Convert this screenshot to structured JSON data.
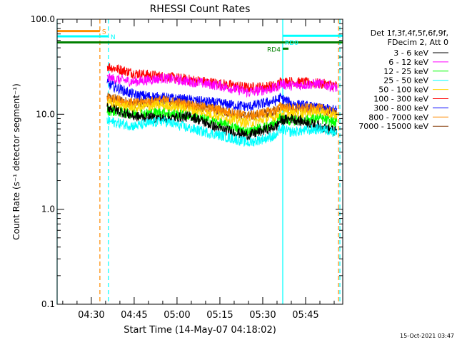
{
  "chart_data": {
    "type": "line",
    "title": "RHESSI Count Rates",
    "xlabel": "Start Time (14-May-07 04:18:02)",
    "ylabel": "Count Rate (s⁻¹ detector segment⁻¹)",
    "yscale": "log",
    "ylim": [
      0.1,
      100
    ],
    "xlim": [
      "04:18:02",
      "05:58:00"
    ],
    "x_tick_labels": [
      "04:30",
      "04:45",
      "05:00",
      "05:15",
      "05:30",
      "05:45"
    ],
    "y_tick_labels": [
      "0.1",
      "1.0",
      "10.0",
      "100.0"
    ],
    "grid": false,
    "legend_position": "right",
    "legend_header": [
      "Det 1f,3f,4f,5f,6f,9f,",
      "FDecim 2, Att 0"
    ],
    "timestamp": "15-Oct-2021 03:47",
    "data_start": "04:35:30",
    "data_end": "05:56:30",
    "series": [
      {
        "name": "3 - 6 keV",
        "color": "#000000",
        "x": [
          "04:35:30",
          "04:45",
          "04:55",
          "05:05",
          "05:15",
          "05:25",
          "05:35",
          "05:36",
          "05:40",
          "05:50",
          "05:56"
        ],
        "y": [
          12,
          9.5,
          9,
          9.5,
          7,
          6,
          7.5,
          8.5,
          9,
          7.5,
          6.5
        ]
      },
      {
        "name": "6 - 12 keV",
        "color": "#ff00ff",
        "x": [
          "04:35:30",
          "04:45",
          "04:55",
          "05:05",
          "05:15",
          "05:25",
          "05:35",
          "05:36",
          "05:40",
          "05:50",
          "05:56"
        ],
        "y": [
          24,
          22,
          24,
          22,
          20,
          17,
          19,
          21,
          20,
          21,
          19
        ]
      },
      {
        "name": "12 - 25 keV",
        "color": "#00ff00",
        "x": [
          "04:35:30",
          "04:45",
          "04:55",
          "05:05",
          "05:15",
          "05:25",
          "05:35",
          "05:36",
          "05:40",
          "05:50",
          "05:56"
        ],
        "y": [
          11,
          10,
          10.5,
          9.5,
          8,
          6.5,
          8,
          9,
          8.5,
          9,
          8
        ]
      },
      {
        "name": "25 - 50 keV",
        "color": "#00ffff",
        "x": [
          "04:35:30",
          "04:45",
          "04:55",
          "05:05",
          "05:15",
          "05:25",
          "05:35",
          "05:36",
          "05:40",
          "05:50",
          "05:56"
        ],
        "y": [
          8.5,
          7.5,
          8.5,
          7,
          6,
          5,
          6,
          7,
          6.5,
          7,
          6.5
        ]
      },
      {
        "name": "50 - 100 keV",
        "color": "#ffd700",
        "x": [
          "04:35:30",
          "04:45",
          "04:55",
          "05:05",
          "05:15",
          "05:25",
          "05:35",
          "05:36",
          "05:40",
          "05:50",
          "05:56"
        ],
        "y": [
          13,
          11.5,
          12.5,
          11,
          9.5,
          8,
          9.5,
          10.5,
          10,
          10.5,
          9.5
        ]
      },
      {
        "name": "100 - 300 keV",
        "color": "#ff0000",
        "x": [
          "04:35:30",
          "04:45",
          "04:55",
          "05:05",
          "05:15",
          "05:25",
          "05:35",
          "05:36",
          "05:40",
          "05:50",
          "05:56"
        ],
        "y": [
          32,
          27,
          25,
          23,
          21,
          19,
          20,
          22,
          22,
          21,
          20
        ]
      },
      {
        "name": "300 - 800 keV",
        "color": "#0000ff",
        "x": [
          "04:35:30",
          "04:45",
          "04:55",
          "05:05",
          "05:15",
          "05:25",
          "05:35",
          "05:36",
          "05:40",
          "05:50",
          "05:56"
        ],
        "y": [
          21,
          16,
          15,
          14,
          13,
          12,
          14,
          15,
          13,
          11.5,
          11
        ]
      },
      {
        "name": "800 - 7000 keV",
        "color": "#ff8c00",
        "x": [
          "04:35:30",
          "04:45",
          "04:55",
          "05:05",
          "05:15",
          "05:25",
          "05:35",
          "05:36",
          "05:40",
          "05:50",
          "05:56"
        ],
        "y": [
          15,
          13,
          14,
          12.5,
          11,
          9.5,
          11,
          12,
          11.5,
          11.5,
          10
        ]
      },
      {
        "name": "7000 - 15000 keV",
        "color": "#8b4513",
        "x": [
          "04:35:30",
          "04:45",
          "04:55",
          "05:05",
          "05:15",
          "05:25",
          "05:35",
          "05:36",
          "05:40",
          "05:50",
          "05:56"
        ],
        "y": [
          15,
          13,
          14,
          12.5,
          11,
          9.5,
          11,
          12,
          11.5,
          11.5,
          10
        ]
      }
    ],
    "flag_bars": [
      {
        "label": "S",
        "color": "#ff8c00",
        "x_start": "04:18:02",
        "x_end": "04:33:00",
        "y": 75,
        "label_pos": "right"
      },
      {
        "label": "N",
        "color": "#00ffff",
        "x_start": "04:18:02",
        "x_end": "04:36:00",
        "y": 66,
        "label_pos": "right"
      },
      {
        "label": "",
        "color": "#008000",
        "x_start": "04:18:02",
        "x_end": "05:58:00",
        "y": 57,
        "label_pos": "none"
      },
      {
        "label": "RD0",
        "color": "#00ffff",
        "x_start": "05:37:00",
        "x_end": "05:58:00",
        "y": 67,
        "label_pos": "below-left"
      },
      {
        "label": "RD4",
        "color": "#008000",
        "x_start": "05:37:00",
        "x_end": "05:39:00",
        "y": 49,
        "label_pos": "left"
      }
    ],
    "vertical_lines": [
      {
        "x": "04:18:02",
        "color": "#00ffff",
        "style": "solid"
      },
      {
        "x": "04:33:00",
        "color": "#ff8c00",
        "style": "dashed"
      },
      {
        "x": "04:36:00",
        "color": "#00ffff",
        "style": "dashed"
      },
      {
        "x": "05:37:00",
        "color": "#00ffff",
        "style": "solid"
      },
      {
        "x": "05:56:30",
        "color": "#ff8c00",
        "style": "dashed"
      },
      {
        "x": "05:57:00",
        "color": "#00ffff",
        "style": "dashed"
      }
    ]
  }
}
